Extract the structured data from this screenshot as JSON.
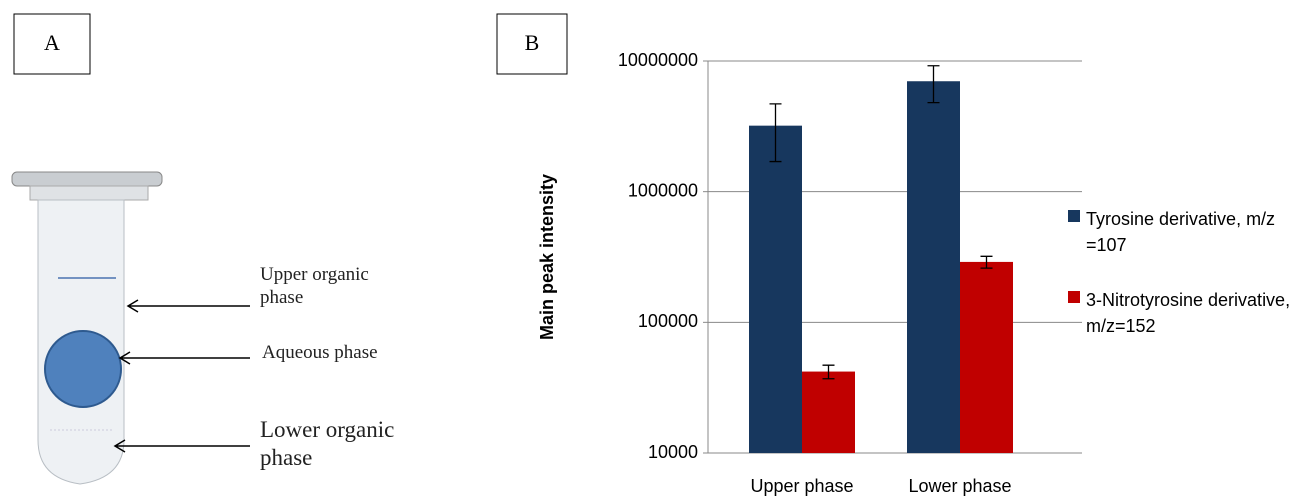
{
  "panel_a": {
    "label": "A",
    "annotations": [
      "Upper organic phase",
      "Aqueous phase",
      "Lower organic phase"
    ]
  },
  "chart_data": {
    "type": "bar",
    "label": "B",
    "y_label": "Main peak intensity",
    "log_scale": true,
    "categories": [
      "Upper phase",
      "Lower phase"
    ],
    "series": [
      {
        "name": "Tyrosine derivative, m/z =107",
        "color": "#17375e",
        "values": [
          3200000,
          7000000
        ],
        "errors": [
          1500000,
          2200000
        ]
      },
      {
        "name": "3-Nitrotyrosine derivative, m/z=152",
        "color": "#c00000",
        "values": [
          42000,
          290000
        ],
        "errors": [
          5000,
          30000
        ]
      }
    ],
    "ylim": [
      10000,
      10000000
    ],
    "yticks": [
      10000,
      100000,
      1000000,
      10000000
    ],
    "grid": true,
    "legend": "right"
  }
}
